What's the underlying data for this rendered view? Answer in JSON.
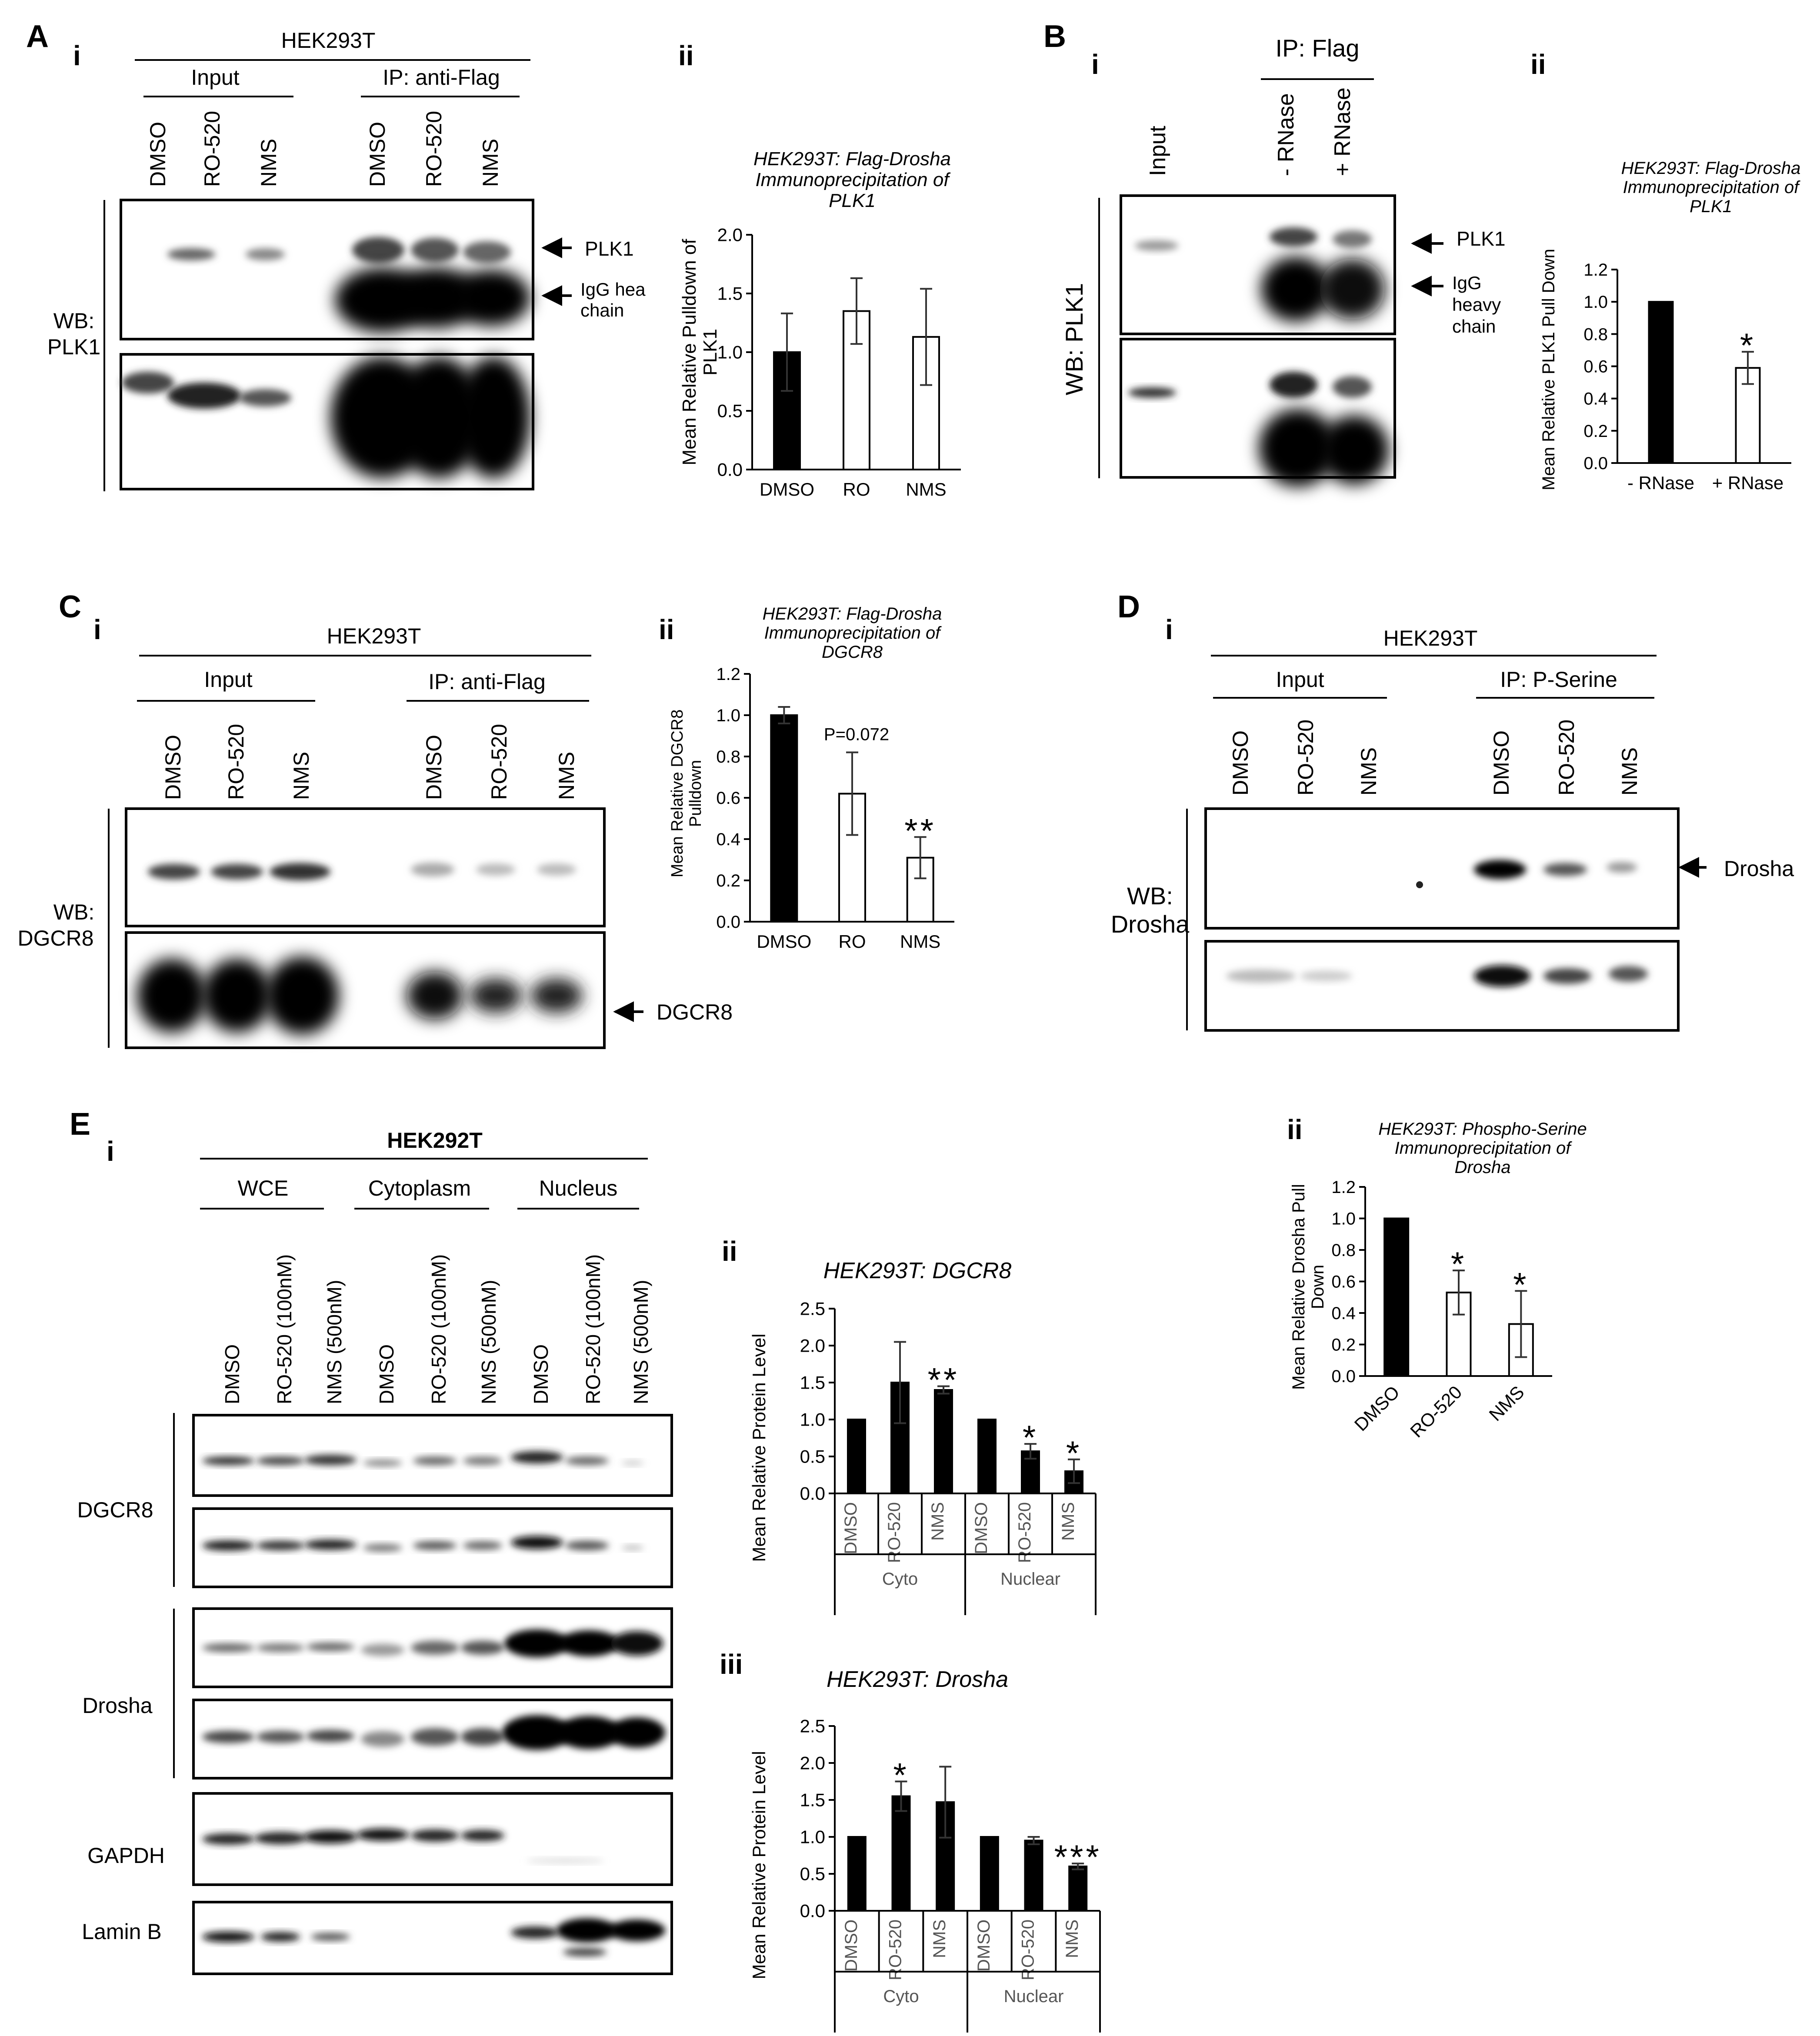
{
  "panels": {
    "A": {
      "letter": "A",
      "i": "i",
      "ii": "ii",
      "cell": "HEK293T",
      "input": "Input",
      "ip": "IP: anti-Flag",
      "lanes": [
        "DMSO",
        "RO-520",
        "NMS",
        "DMSO",
        "RO-520",
        "NMS"
      ],
      "wb": [
        "WB:",
        "PLK1"
      ],
      "plk1": "PLK1",
      "igg": [
        "IgG hea",
        "chain"
      ]
    },
    "B": {
      "letter": "B",
      "i": "i",
      "ii": "ii",
      "ip": "IP: Flag",
      "lanes": [
        "Input",
        "- RNase",
        "+ RNase"
      ],
      "wb": "WB: PLK1",
      "plk1": "PLK1",
      "igg": [
        "IgG",
        "heavy",
        "chain"
      ]
    },
    "C": {
      "letter": "C",
      "i": "i",
      "ii": "ii",
      "cell": "HEK293T",
      "input": "Input",
      "ip": "IP: anti-Flag",
      "lanes": [
        "DMSO",
        "RO-520",
        "NMS",
        "DMSO",
        "RO-520",
        "NMS"
      ],
      "wb": [
        "WB:",
        "DGCR8"
      ],
      "dgcr8": "DGCR8"
    },
    "D": {
      "letter": "D",
      "i": "i",
      "ii": "ii",
      "cell": "HEK293T",
      "input": "Input",
      "ip": "IP: P-Serine",
      "lanes": [
        "DMSO",
        "RO-520",
        "NMS",
        "DMSO",
        "RO-520",
        "NMS"
      ],
      "wb": [
        "WB:",
        "Drosha"
      ],
      "drosha": "Drosha"
    },
    "E": {
      "letter": "E",
      "i": "i",
      "ii": "ii",
      "iii": "iii",
      "cell": "HEK292T",
      "groups": [
        "WCE",
        "Cytoplasm",
        "Nucleus"
      ],
      "lanes": [
        "DMSO",
        "RO-520 (100nM)",
        "NMS (500nM)",
        "DMSO",
        "RO-520 (100nM)",
        "NMS (500nM)",
        "DMSO",
        "RO-520 (100nM)",
        "NMS (500nM)"
      ],
      "blots": [
        "DGCR8",
        "Drosha",
        "GAPDH",
        "Lamin B"
      ]
    }
  },
  "chart_data": [
    {
      "id": "Aii",
      "type": "bar",
      "title": [
        "HEK293T: Flag-Drosha",
        "Immunoprecipitation of",
        "PLK1"
      ],
      "ylabel": [
        "Mean Relative Pulldown of",
        "PLK1"
      ],
      "categories": [
        "DMSO",
        "RO",
        "NMS"
      ],
      "values": [
        1.0,
        1.35,
        1.13
      ],
      "errors": [
        0.33,
        0.28,
        0.41
      ],
      "fills": [
        "#000000",
        "#ffffff",
        "#ffffff"
      ],
      "ylim": [
        0,
        2.0
      ],
      "yticks": [
        "0.0",
        "0.5",
        "1.0",
        "1.5",
        "2.0"
      ],
      "sig": [
        "",
        "",
        ""
      ]
    },
    {
      "id": "Bii",
      "type": "bar",
      "title": [
        "HEK293T: Flag-Drosha",
        "Immunoprecipitation of",
        "PLK1"
      ],
      "ylabel": [
        "Mean Relative PLK1 Pull Down"
      ],
      "categories": [
        "- RNase",
        "+ RNase"
      ],
      "values": [
        1.0,
        0.59
      ],
      "errors": [
        0.0,
        0.1
      ],
      "fills": [
        "#000000",
        "#ffffff"
      ],
      "ylim": [
        0,
        1.2
      ],
      "yticks": [
        "0.0",
        "0.2",
        "0.4",
        "0.6",
        "0.8",
        "1.0",
        "1.2"
      ],
      "sig": [
        "",
        "*"
      ]
    },
    {
      "id": "Cii",
      "type": "bar",
      "title": [
        "HEK293T: Flag-Drosha",
        "Immunoprecipitation of",
        "DGCR8"
      ],
      "ylabel": [
        "Mean Relative DGCR8",
        "Pulldown"
      ],
      "categories": [
        "DMSO",
        "RO",
        "NMS"
      ],
      "values": [
        1.0,
        0.62,
        0.31
      ],
      "errors": [
        0.04,
        0.2,
        0.1
      ],
      "fills": [
        "#000000",
        "#ffffff",
        "#ffffff"
      ],
      "ylim": [
        0,
        1.2
      ],
      "yticks": [
        "0.0",
        "0.2",
        "0.4",
        "0.6",
        "0.8",
        "1.0",
        "1.2"
      ],
      "sig": [
        "",
        "P=0.072",
        "**"
      ]
    },
    {
      "id": "Dii",
      "type": "bar",
      "title": [
        "HEK293T: Phospho-Serine",
        "Immunoprecipitation of",
        "Drosha"
      ],
      "ylabel": [
        "Mean Relative Drosha Pull",
        "Down"
      ],
      "categories": [
        "DMSO",
        "RO-520",
        "NMS"
      ],
      "values": [
        1.0,
        0.53,
        0.33
      ],
      "errors": [
        0.0,
        0.14,
        0.21
      ],
      "fills": [
        "#000000",
        "#ffffff",
        "#ffffff"
      ],
      "ylim": [
        0,
        1.2
      ],
      "yticks": [
        "0.0",
        "0.2",
        "0.4",
        "0.6",
        "0.8",
        "1.0",
        "1.2"
      ],
      "sig": [
        "",
        "*",
        "*"
      ]
    },
    {
      "id": "Eii",
      "type": "bar",
      "title": [
        "HEK293T:  DGCR8"
      ],
      "ylabel": [
        "Mean Relative Protein Level"
      ],
      "categories": [
        "DMSO",
        "RO-520",
        "NMS",
        "DMSO",
        "RO-520",
        "NMS"
      ],
      "groups": [
        "Cyto",
        "Nuclear"
      ],
      "values": [
        1.0,
        1.5,
        1.4,
        1.0,
        0.57,
        0.3
      ],
      "errors": [
        0,
        0.55,
        0.05,
        0,
        0.1,
        0.16
      ],
      "fills": [
        "#000000",
        "#000000",
        "#000000",
        "#000000",
        "#000000",
        "#000000"
      ],
      "ylim": [
        0,
        2.5
      ],
      "yticks": [
        "0.0",
        "0.5",
        "1.0",
        "1.5",
        "2.0",
        "2.5"
      ],
      "sig": [
        "",
        "",
        "**",
        "",
        "*",
        "*"
      ]
    },
    {
      "id": "Eiii",
      "type": "bar",
      "title": [
        "HEK293T:  Drosha"
      ],
      "ylabel": [
        "Mean Relative Protein Level"
      ],
      "categories": [
        "DMSO",
        "RO-520",
        "NMS",
        "DMSO",
        "RO-520",
        "NMS"
      ],
      "groups": [
        "Cyto",
        "Nuclear"
      ],
      "values": [
        1.0,
        1.55,
        1.47,
        1.0,
        0.95,
        0.6
      ],
      "errors": [
        0,
        0.2,
        0.48,
        0,
        0.05,
        0.04
      ],
      "fills": [
        "#000000",
        "#000000",
        "#000000",
        "#000000",
        "#000000",
        "#000000"
      ],
      "ylim": [
        0,
        2.5
      ],
      "yticks": [
        "0.0",
        "0.5",
        "1.0",
        "1.5",
        "2.0",
        "2.5"
      ],
      "sig": [
        "",
        "*",
        "",
        "",
        "",
        "***"
      ]
    }
  ]
}
